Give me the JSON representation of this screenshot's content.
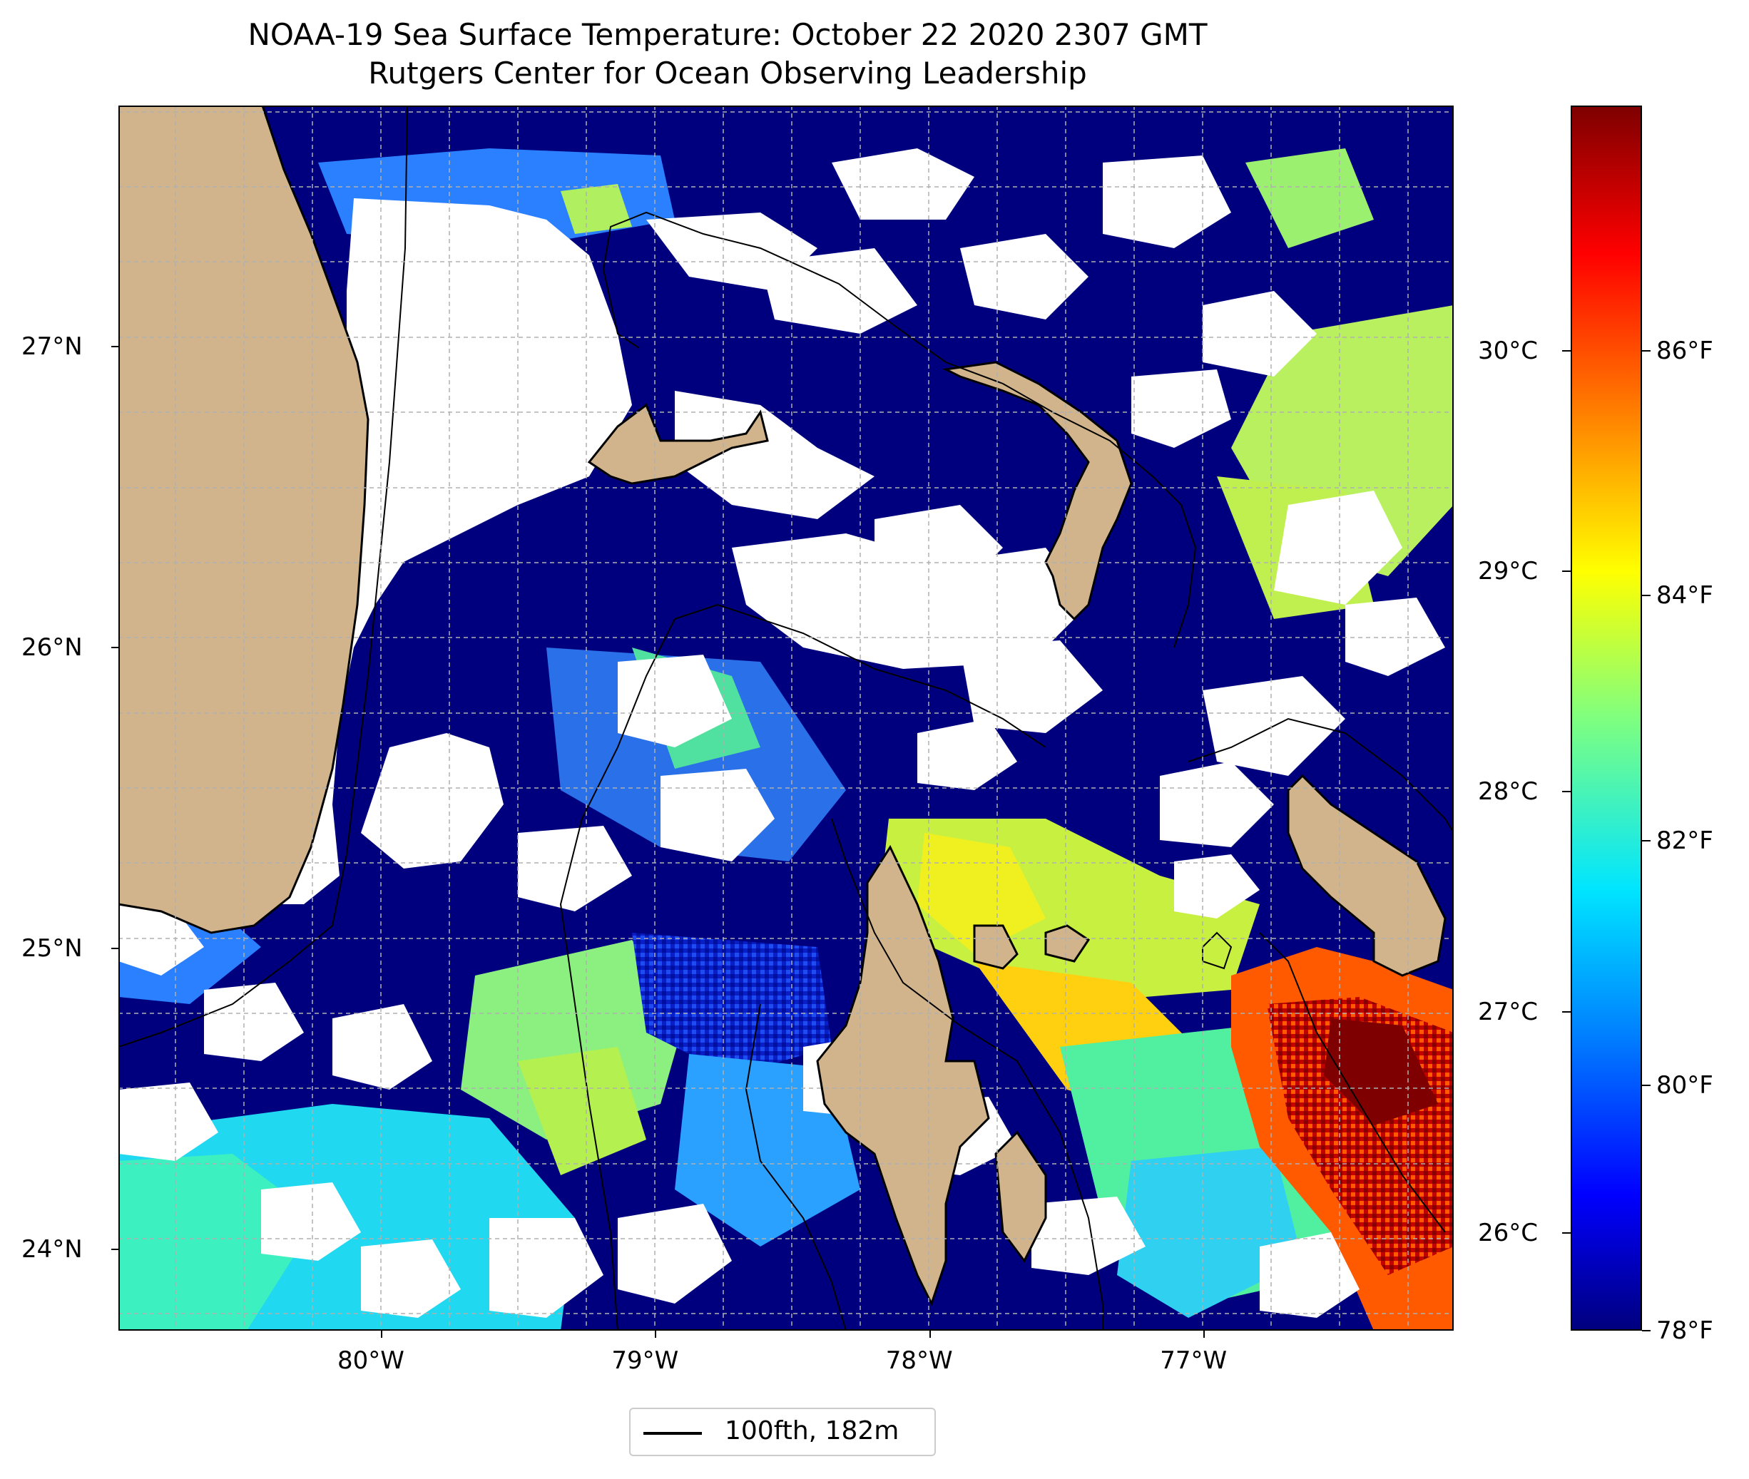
{
  "title_line1": "NOAA-19 Sea Surface Temperature: October 22 2020 2307 GMT",
  "title_line2": "Rutgers Center for Ocean Observing Leadership",
  "map": {
    "lon_range": [
      -80.96,
      -76.09
    ],
    "lat_range": [
      23.73,
      27.8
    ],
    "lat_ticks": [
      {
        "value": 27,
        "label": "27°N"
      },
      {
        "value": 26,
        "label": "26°N"
      },
      {
        "value": 25,
        "label": "25°N"
      },
      {
        "value": 24,
        "label": "24°N"
      }
    ],
    "lon_ticks": [
      {
        "value": -80,
        "label": "80°W"
      },
      {
        "value": -79,
        "label": "79°W"
      },
      {
        "value": -78,
        "label": "78°W"
      },
      {
        "value": -77,
        "label": "77°W"
      }
    ],
    "colors": {
      "land": "#d2b48c",
      "cloud": "#ffffff",
      "lake": "#9ab6e0",
      "grid": "#b0b0b0"
    }
  },
  "colorbar": {
    "colormap": "jet",
    "range_f": [
      78,
      88
    ],
    "celsius_ticks": [
      "30°C",
      "29°C",
      "28°C",
      "27°C",
      "26°C"
    ],
    "fahrenheit_ticks": [
      "86°F",
      "84°F",
      "82°F",
      "80°F",
      "78°F"
    ]
  },
  "legend": {
    "label": "100fth, 182m"
  }
}
